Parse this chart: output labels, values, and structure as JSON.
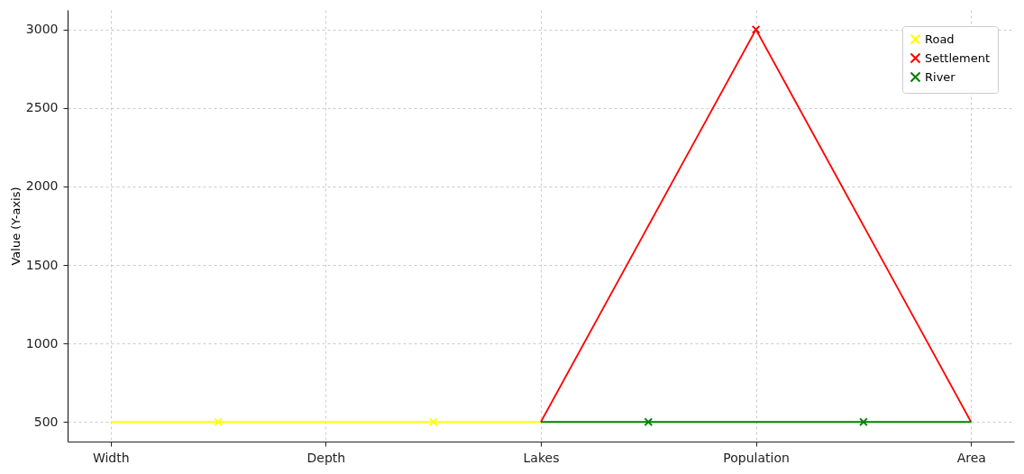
{
  "chart_data": {
    "type": "line",
    "ylabel": "Value (Y-axis)",
    "ylim": [
      375,
      3125
    ],
    "categories": [
      "Width",
      null,
      "Depth",
      null,
      "Lakes",
      null,
      "Population",
      null,
      "Area"
    ],
    "yticks": [
      500,
      1000,
      1500,
      2000,
      2500,
      3000
    ],
    "series": [
      {
        "color": "#ffff00",
        "marker": "none",
        "values": [
          500,
          500,
          500,
          500,
          500,
          null,
          null,
          null,
          null
        ]
      },
      {
        "color": "#ff0000",
        "marker": "none",
        "values": [
          null,
          null,
          null,
          null,
          500,
          1750,
          3000,
          1750,
          500
        ]
      },
      {
        "color": "#008000",
        "marker": "none",
        "values": [
          null,
          null,
          null,
          null,
          500,
          500,
          500,
          500,
          500
        ]
      },
      {
        "type": "scatter",
        "name": "Road",
        "color": "#ffff00",
        "marker": "cross",
        "values": [
          null,
          500,
          null,
          500,
          null,
          null,
          null,
          null,
          null
        ]
      },
      {
        "type": "scatter",
        "name": "Settlement",
        "color": "#ff0000",
        "marker": "cross",
        "values": [
          null,
          null,
          null,
          null,
          null,
          null,
          3000,
          null,
          null
        ]
      },
      {
        "type": "scatter",
        "name": "River",
        "color": "#008000",
        "marker": "cross",
        "values": [
          null,
          null,
          null,
          null,
          null,
          500,
          null,
          500,
          null
        ]
      }
    ],
    "grid": true,
    "legend": "top right"
  }
}
